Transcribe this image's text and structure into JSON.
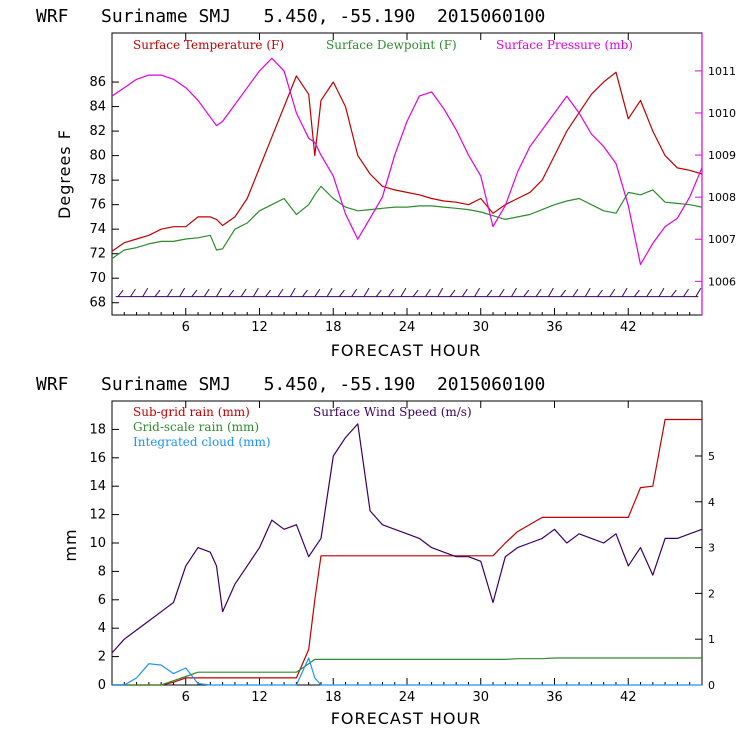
{
  "chart_data": [
    {
      "type": "line",
      "title": "WRF   Suriname SMJ   5.450, -55.190  2015060100",
      "xlabel": "FORECAST HOUR",
      "ylabel": "Degrees F",
      "xlim": [
        0,
        48
      ],
      "ylim": [
        67,
        90
      ],
      "y2lim": [
        1005.2,
        1011.9
      ],
      "xticks": [
        "6",
        "12",
        "18",
        "24",
        "30",
        "36",
        "42"
      ],
      "yticks": [
        "68",
        "70",
        "72",
        "74",
        "76",
        "78",
        "80",
        "82",
        "84",
        "86"
      ],
      "y2ticks": [
        "1006",
        "1007",
        "1008",
        "1009",
        "1010",
        "1011"
      ],
      "legend": [
        "Surface Temperature (F)",
        "Surface Dewpoint (F)",
        "Surface Pressure (mb)"
      ],
      "colors": [
        "#c00000",
        "#2e8b2e",
        "#e000e0"
      ],
      "x": [
        0,
        1,
        2,
        3,
        4,
        5,
        6,
        7,
        8,
        8.5,
        9,
        10,
        11,
        12,
        13,
        14,
        15,
        16,
        16.5,
        17,
        18,
        19,
        20,
        21,
        22,
        23,
        24,
        25,
        26,
        27,
        28,
        29,
        30,
        31,
        32,
        33,
        34,
        35,
        36,
        37,
        38,
        39,
        40,
        41,
        42,
        43,
        44,
        45,
        46,
        47,
        48
      ],
      "series": [
        {
          "name": "Surface Temperature (F)",
          "axis": "left",
          "values": [
            72.2,
            72.9,
            73.2,
            73.5,
            74.0,
            74.2,
            74.2,
            75.0,
            75.0,
            74.8,
            74.3,
            75.0,
            76.5,
            79.0,
            81.5,
            84.0,
            86.5,
            85.0,
            80.0,
            84.5,
            86.0,
            84.0,
            80.0,
            78.5,
            77.5,
            77.2,
            77.0,
            76.8,
            76.5,
            76.3,
            76.2,
            76.0,
            76.5,
            75.3,
            76.0,
            76.5,
            77.0,
            78.0,
            80.0,
            82.0,
            83.5,
            85.0,
            86.0,
            86.8,
            83.0,
            84.5,
            82.0,
            80.0,
            79.0,
            78.8,
            78.5
          ]
        },
        {
          "name": "Surface Dewpoint (F)",
          "axis": "left",
          "values": [
            71.6,
            72.3,
            72.5,
            72.8,
            73.0,
            73.0,
            73.2,
            73.3,
            73.5,
            72.3,
            72.4,
            74.0,
            74.5,
            75.5,
            76.0,
            76.5,
            75.2,
            76.0,
            76.8,
            77.5,
            76.5,
            75.8,
            75.5,
            75.6,
            75.7,
            75.8,
            75.8,
            75.9,
            75.9,
            75.8,
            75.7,
            75.6,
            75.4,
            75.1,
            74.8,
            75.0,
            75.2,
            75.6,
            76.0,
            76.3,
            76.5,
            76.0,
            75.5,
            75.3,
            77.0,
            76.8,
            77.2,
            76.2,
            76.1,
            76.0,
            75.8
          ]
        },
        {
          "name": "Surface Pressure (mb)",
          "axis": "right",
          "values": [
            1010.4,
            1010.6,
            1010.8,
            1010.9,
            1010.9,
            1010.8,
            1010.6,
            1010.3,
            1009.9,
            1009.7,
            1009.8,
            1010.2,
            1010.6,
            1011.0,
            1011.3,
            1011.0,
            1010.0,
            1009.4,
            1009.3,
            1009.0,
            1008.5,
            1007.6,
            1007.0,
            1007.5,
            1008.0,
            1009.0,
            1009.8,
            1010.4,
            1010.5,
            1010.1,
            1009.6,
            1009.0,
            1008.5,
            1007.3,
            1007.8,
            1008.6,
            1009.2,
            1009.6,
            1010.0,
            1010.4,
            1010.0,
            1009.5,
            1009.2,
            1008.8,
            1007.8,
            1006.4,
            1006.9,
            1007.3,
            1007.5,
            1008.0,
            1008.7
          ]
        }
      ],
      "wind_barbs": "row of wind barbs at y=68.5 across forecast hours"
    },
    {
      "type": "line",
      "title": "WRF   Suriname SMJ   5.450, -55.190  2015060100",
      "xlabel": "FORECAST HOUR",
      "ylabel": "mm",
      "xlim": [
        0,
        48
      ],
      "ylim": [
        0,
        20
      ],
      "y2lim": [
        0,
        6.2
      ],
      "xticks": [
        "6",
        "12",
        "18",
        "24",
        "30",
        "36",
        "42"
      ],
      "yticks": [
        "0",
        "2",
        "4",
        "6",
        "8",
        "10",
        "12",
        "14",
        "16",
        "18"
      ],
      "y2ticks": [
        "0",
        "1",
        "2",
        "3",
        "4",
        "5"
      ],
      "legend": [
        "Sub-grid rain (mm)",
        "Surface Wind Speed (m/s)",
        "Grid-scale rain (mm)",
        "Integrated cloud (mm)"
      ],
      "colors": [
        "#c00000",
        "#3a0060",
        "#2e8b2e",
        "#1e90ff"
      ],
      "x": [
        0,
        1,
        2,
        3,
        4,
        5,
        6,
        7,
        8,
        8.5,
        9,
        10,
        11,
        12,
        13,
        14,
        15,
        16,
        16.5,
        17,
        18,
        19,
        20,
        21,
        22,
        23,
        24,
        25,
        26,
        27,
        28,
        29,
        30,
        31,
        32,
        33,
        34,
        35,
        36,
        37,
        38,
        39,
        40,
        41,
        42,
        43,
        44,
        45,
        46,
        47,
        48
      ],
      "series": [
        {
          "name": "Sub-grid rain (mm)",
          "axis": "left",
          "values": [
            0,
            0,
            0,
            0,
            0,
            0.2,
            0.5,
            0.5,
            0.5,
            0.5,
            0.5,
            0.5,
            0.5,
            0.5,
            0.5,
            0.5,
            0.5,
            2.5,
            6.0,
            9.1,
            9.1,
            9.1,
            9.1,
            9.1,
            9.1,
            9.1,
            9.1,
            9.1,
            9.1,
            9.1,
            9.1,
            9.1,
            9.1,
            9.1,
            10.0,
            10.8,
            11.3,
            11.8,
            11.8,
            11.8,
            11.8,
            11.8,
            11.8,
            11.8,
            11.8,
            13.9,
            14.0,
            18.7,
            18.7,
            18.7,
            18.7
          ]
        },
        {
          "name": "Surface Wind Speed (m/s)",
          "axis": "right",
          "values": [
            0.7,
            1.0,
            1.2,
            1.4,
            1.6,
            1.8,
            2.6,
            3.0,
            2.9,
            2.6,
            1.6,
            2.2,
            2.6,
            3.0,
            3.6,
            3.4,
            3.5,
            2.8,
            3.0,
            3.2,
            5.0,
            5.4,
            5.7,
            3.8,
            3.5,
            3.4,
            3.3,
            3.2,
            3.0,
            2.9,
            2.8,
            2.8,
            2.7,
            1.8,
            2.8,
            3.0,
            3.1,
            3.2,
            3.4,
            3.1,
            3.3,
            3.2,
            3.1,
            3.3,
            2.6,
            3.0,
            2.4,
            3.2,
            3.2,
            3.3,
            3.4
          ]
        },
        {
          "name": "Grid-scale rain (mm)",
          "axis": "left",
          "values": [
            0,
            0,
            0,
            0,
            0,
            0.3,
            0.6,
            0.9,
            0.9,
            0.9,
            0.9,
            0.9,
            0.9,
            0.9,
            0.9,
            0.9,
            0.9,
            1.5,
            1.8,
            1.8,
            1.8,
            1.8,
            1.8,
            1.8,
            1.8,
            1.8,
            1.8,
            1.8,
            1.8,
            1.8,
            1.8,
            1.8,
            1.8,
            1.8,
            1.8,
            1.85,
            1.85,
            1.85,
            1.9,
            1.9,
            1.9,
            1.9,
            1.9,
            1.9,
            1.9,
            1.9,
            1.9,
            1.9,
            1.9,
            1.9,
            1.9
          ]
        },
        {
          "name": "Integrated cloud (mm)",
          "axis": "left",
          "values": [
            0,
            0,
            0.5,
            1.5,
            1.4,
            0.8,
            1.2,
            0.1,
            0,
            0,
            0,
            0,
            0,
            0,
            0,
            0,
            0,
            1.9,
            0.5,
            0,
            0,
            0,
            0,
            0,
            0,
            0,
            0,
            0,
            0,
            0,
            0,
            0,
            0,
            0,
            0,
            0,
            0,
            0,
            0,
            0,
            0,
            0,
            0,
            0,
            0,
            0,
            0,
            0,
            0,
            0,
            0
          ]
        }
      ]
    }
  ]
}
